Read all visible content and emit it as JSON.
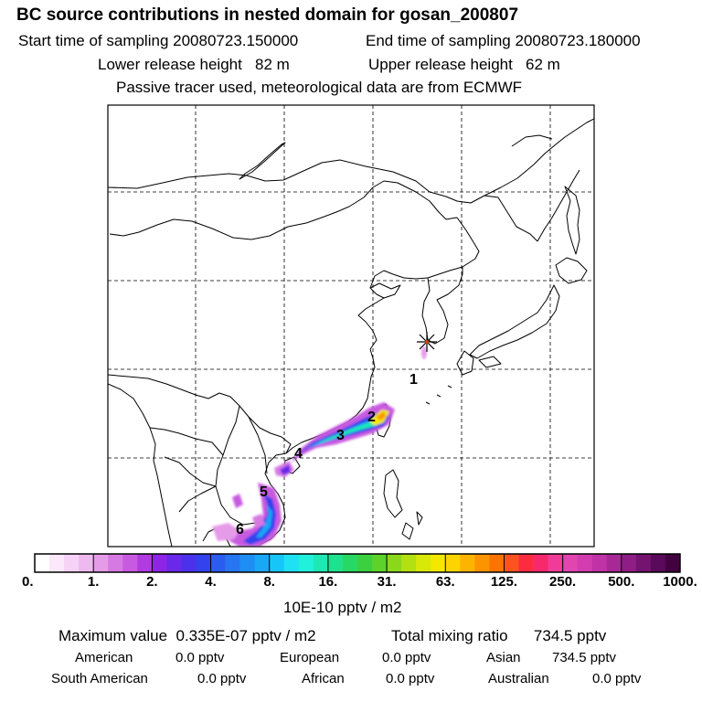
{
  "header": {
    "title": "BC  source contributions in nested domain for gosan_200807",
    "start_label": "Start time of sampling",
    "start_value": "20080723.150000",
    "end_label": "End time of sampling",
    "end_value": "20080723.180000",
    "lower_label": "Lower release height",
    "lower_value": "82 m",
    "upper_label": "Upper release height",
    "upper_value": "62 m",
    "note": "Passive tracer used, meteorological data are from ECMWF"
  },
  "map": {
    "station_marker": "receptor-star-icon",
    "source_labels": [
      "1",
      "2",
      "3",
      "4",
      "5",
      "6"
    ]
  },
  "colorbar": {
    "ticks": [
      "0.",
      "1.",
      "2.",
      "4.",
      "8.",
      "16.",
      "31.",
      "63.",
      "125.",
      "250.",
      "500.",
      "1000."
    ],
    "colors": [
      "#ffffff",
      "#fbe8fb",
      "#f6d2f6",
      "#f0b8f0",
      "#e59be8",
      "#d779e3",
      "#c85ae0",
      "#b13be0",
      "#8e25e6",
      "#6a28ea",
      "#4b31ec",
      "#3342ec",
      "#2a5cf0",
      "#2675f2",
      "#1f8ef4",
      "#19a8f6",
      "#17c6f8",
      "#1ee2f4",
      "#20f0dc",
      "#1ee8b4",
      "#1fe08c",
      "#28d864",
      "#3ad040",
      "#5cd22a",
      "#8ad81c",
      "#b2e010",
      "#d8e808",
      "#f4e800",
      "#fcd400",
      "#fcb400",
      "#fc9400",
      "#fc7400",
      "#fc5220",
      "#fc2c40",
      "#f8286c",
      "#f03c98",
      "#e244b0",
      "#d23cae",
      "#c032a6",
      "#a82896",
      "#8e1e86",
      "#741470",
      "#5a0a5a",
      "#420040"
    ],
    "units": "10E-10 pptv / m2"
  },
  "stats": {
    "max_label": "Maximum value",
    "max_value": "0.335E-07 pptv / m2",
    "total_label": "Total mixing ratio",
    "total_value": "734.5 pptv",
    "american_label": "American",
    "american_value": "0.0 pptv",
    "european_label": "European",
    "european_value": "0.0 pptv",
    "asian_label": "Asian",
    "asian_value": "734.5 pptv",
    "south_american_label": "South American",
    "south_american_value": "0.0 pptv",
    "african_label": "African",
    "african_value": "0.0 pptv",
    "australian_label": "Australian",
    "australian_value": "0.0 pptv"
  }
}
